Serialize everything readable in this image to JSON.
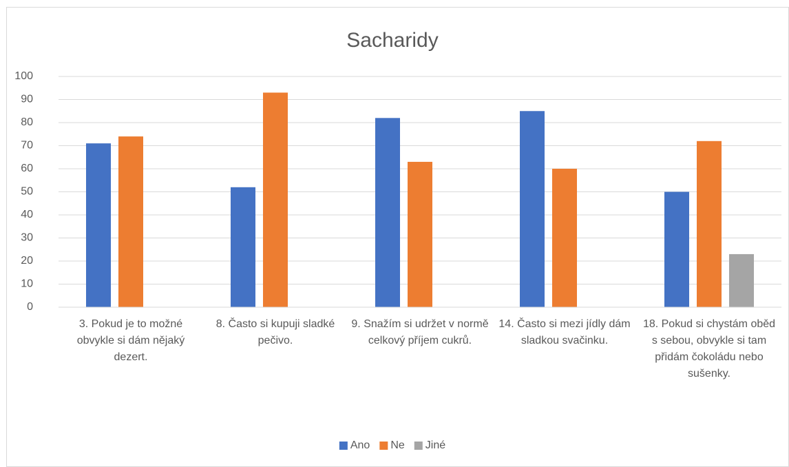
{
  "chart_data": {
    "type": "bar",
    "title": "Sacharidy",
    "categories": [
      "3. Pokud je to možné obvykle si dám nějaký dezert.",
      "8. Často si kupuji sladké pečivo.",
      "9. Snažím si udržet v normě celkový příjem cukrů.",
      "14. Často si mezi jídly dám sladkou svačinku.",
      "18. Pokud si chystám oběd s sebou, obvykle si tam přidám čokoládu nebo sušenky."
    ],
    "series": [
      {
        "name": "Ano",
        "color": "#4472c4",
        "values": [
          71,
          52,
          82,
          85,
          50
        ]
      },
      {
        "name": "Ne",
        "color": "#ed7d31",
        "values": [
          74,
          93,
          63,
          60,
          72
        ]
      },
      {
        "name": "Jiné",
        "color": "#a5a5a5",
        "values": [
          null,
          null,
          null,
          null,
          23
        ]
      }
    ],
    "ylim": [
      0,
      100
    ],
    "yticks": [
      0,
      10,
      20,
      30,
      40,
      50,
      60,
      70,
      80,
      90,
      100
    ],
    "grid": true,
    "legend": "bottom"
  }
}
